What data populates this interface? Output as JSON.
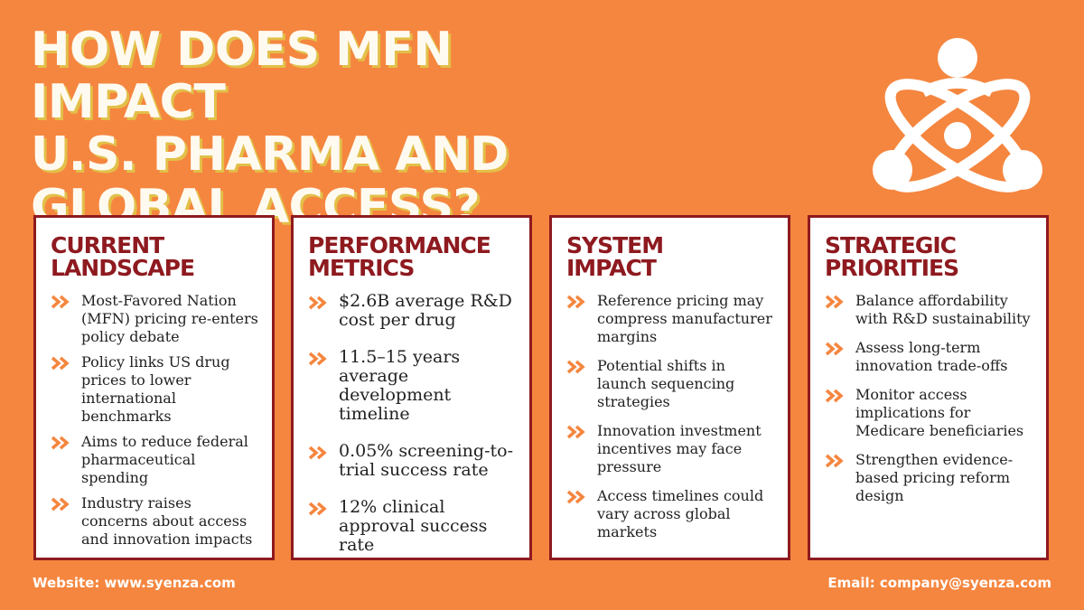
{
  "title_lines": [
    "HOW DOES MFN IMPACT",
    "U.S. PHARMA AND",
    "GLOBAL ACCESS?"
  ],
  "logo_icon": "atom-people-icon",
  "colors": {
    "background": "#f5863f",
    "accent": "#8e1a1f",
    "title_shadow": "#e2c049"
  },
  "cards": [
    {
      "heading": [
        "CURRENT",
        "LANDSCAPE"
      ],
      "items": [
        "Most-Favored Nation (MFN) pricing re-enters policy debate",
        "Policy links US drug prices to lower international benchmarks",
        "Aims to reduce federal pharmaceutical spending",
        "Industry raises concerns about access and innovation impacts"
      ]
    },
    {
      "heading": [
        "PERFORMANCE",
        "METRICS"
      ],
      "items": [
        "$2.6B average R&D cost per drug",
        "11.5–15 years average development timeline",
        "0.05% screening-to-trial success rate",
        "12% clinical approval success rate"
      ]
    },
    {
      "heading": [
        "SYSTEM",
        "IMPACT"
      ],
      "items": [
        "Reference pricing may compress manufacturer margins",
        "Potential shifts in launch sequencing strategies",
        "Innovation investment incentives may face pressure",
        "Access timelines could vary across global markets"
      ]
    },
    {
      "heading": [
        "STRATEGIC",
        "PRIORITIES"
      ],
      "items": [
        "Balance affordability with R&D sustainability",
        "Assess long-term innovation trade-offs",
        "Monitor access implications for Medicare beneficiaries",
        "Strengthen evidence-based pricing reform design"
      ]
    }
  ],
  "footer": {
    "website": "Website: www.syenza.com",
    "email": "Email: company@syenza.com"
  }
}
